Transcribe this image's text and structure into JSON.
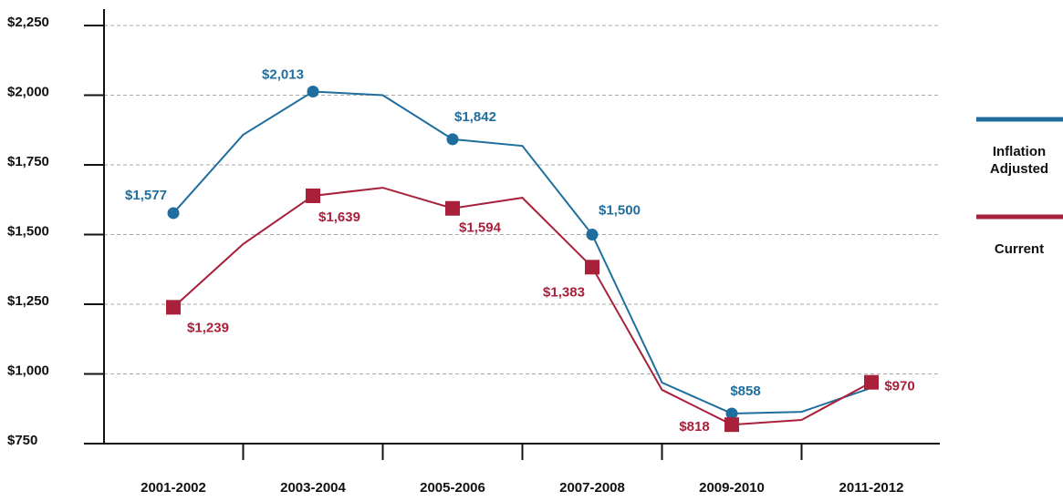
{
  "chart_data": {
    "type": "line",
    "categories": [
      "2001-2002",
      null,
      "2003-2004",
      null,
      "2005-2006",
      null,
      "2007-2008",
      null,
      "2009-2010",
      null,
      "2011-2012"
    ],
    "series": [
      {
        "name": "Inflation Adjusted",
        "color": "#1f6e9e",
        "values": [
          1577,
          1858,
          2013,
          2000,
          1842,
          1818,
          1500,
          969,
          858,
          864,
          950
        ],
        "value_labels": [
          "$1,577",
          null,
          "$2,013",
          null,
          "$1,842",
          null,
          "$1,500",
          null,
          "$858",
          null,
          null
        ]
      },
      {
        "name": "Current",
        "color": "#a8203a",
        "values": [
          1239,
          1466,
          1639,
          1668,
          1594,
          1632,
          1383,
          943,
          818,
          835,
          970
        ],
        "value_labels": [
          "$1,239",
          null,
          "$1,639",
          null,
          "$1,594",
          null,
          "$1,383",
          null,
          "$818",
          null,
          "$970"
        ]
      }
    ],
    "ylim": [
      750,
      2250
    ],
    "yticks": [
      {
        "value": 750,
        "label": "$750"
      },
      {
        "value": 1000,
        "label": "$1,000"
      },
      {
        "value": 1250,
        "label": "$1,250"
      },
      {
        "value": 1500,
        "label": "$1,500"
      },
      {
        "value": 1750,
        "label": "$1,750"
      },
      {
        "value": 2000,
        "label": "$2,000"
      },
      {
        "value": 2250,
        "label": "$2,250"
      }
    ],
    "grid": true,
    "legend": "right"
  }
}
